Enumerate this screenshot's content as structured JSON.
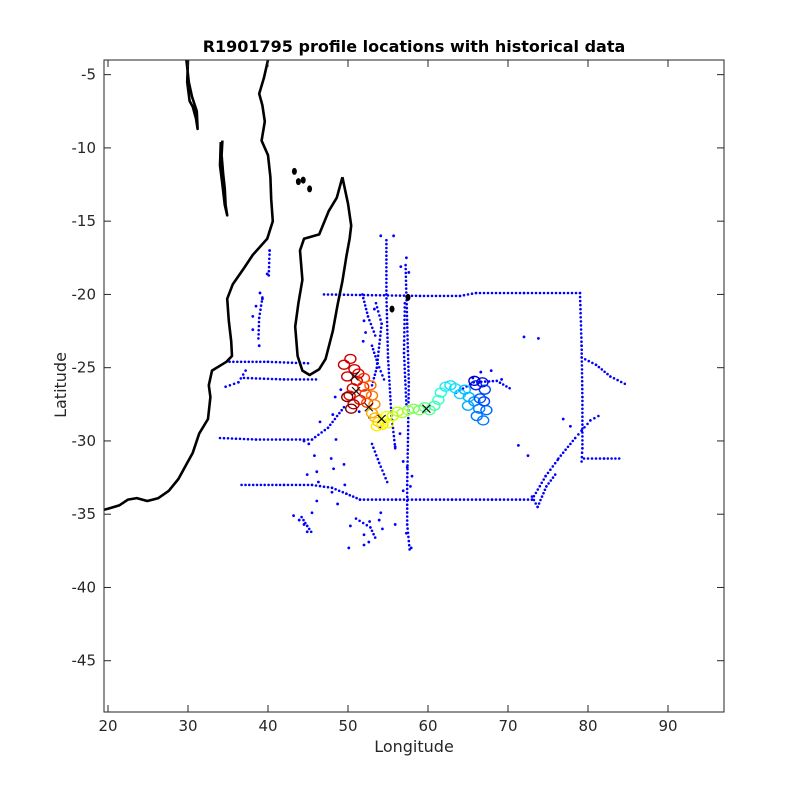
{
  "chart_data": {
    "type": "scatter",
    "title": "R1901795 profile locations with historical data",
    "xlabel": "Longitude",
    "ylabel": "Latitude",
    "xlim": [
      19.5,
      97
    ],
    "ylim": [
      -48.5,
      -4
    ],
    "xticks": [
      20,
      30,
      40,
      50,
      60,
      70,
      80,
      90
    ],
    "yticks": [
      -5,
      -10,
      -15,
      -20,
      -25,
      -30,
      -35,
      -40,
      -45
    ],
    "grid": false,
    "coastline_color": "#000000",
    "historical_color": "#0000ff",
    "coastline": [
      [
        [
          30,
          -4
        ],
        [
          29.9,
          -5.5
        ],
        [
          30.2,
          -6.8
        ],
        [
          30.6,
          -7.2
        ],
        [
          31.0,
          -8.0
        ],
        [
          31.2,
          -8.7
        ],
        [
          31.1,
          -7.5
        ],
        [
          30.5,
          -6.5
        ],
        [
          30.1,
          -5.5
        ],
        [
          29.8,
          -4
        ]
      ],
      [
        [
          34.3,
          -9.5
        ],
        [
          34.2,
          -10.5
        ],
        [
          34.4,
          -11.8
        ],
        [
          34.6,
          -12.8
        ],
        [
          34.7,
          -13.9
        ],
        [
          34.9,
          -14.6
        ],
        [
          34.6,
          -13.9
        ],
        [
          34.3,
          -12.5
        ],
        [
          34.0,
          -11.2
        ],
        [
          34.1,
          -9.6
        ]
      ],
      [
        [
          40.0,
          -4
        ],
        [
          39.5,
          -5.2
        ],
        [
          38.9,
          -6.3
        ],
        [
          39.3,
          -7.1
        ],
        [
          39.6,
          -8.2
        ],
        [
          39.2,
          -9.5
        ],
        [
          40.0,
          -10.5
        ],
        [
          40.3,
          -12.0
        ],
        [
          40.4,
          -13.5
        ],
        [
          40.6,
          -15.0
        ],
        [
          39.9,
          -16.2
        ],
        [
          38.1,
          -17.3
        ],
        [
          37.0,
          -18.2
        ],
        [
          35.6,
          -19.3
        ],
        [
          34.9,
          -20.3
        ],
        [
          35.1,
          -21.8
        ],
        [
          35.4,
          -23.2
        ],
        [
          35.5,
          -24.2
        ],
        [
          34.8,
          -24.6
        ],
        [
          33.0,
          -25.2
        ],
        [
          32.6,
          -26.2
        ],
        [
          32.8,
          -27.0
        ],
        [
          32.5,
          -28.5
        ],
        [
          31.4,
          -29.5
        ],
        [
          30.6,
          -30.8
        ],
        [
          29.8,
          -31.6
        ],
        [
          28.8,
          -32.6
        ],
        [
          27.6,
          -33.4
        ],
        [
          26.3,
          -33.9
        ],
        [
          25.6,
          -34.0
        ],
        [
          24.9,
          -34.1
        ],
        [
          23.6,
          -33.9
        ],
        [
          22.5,
          -34.0
        ],
        [
          21.4,
          -34.4
        ],
        [
          20.2,
          -34.6
        ],
        [
          19.5,
          -34.7
        ]
      ],
      [
        [
          49.3,
          -12.0
        ],
        [
          50.0,
          -13.8
        ],
        [
          50.4,
          -15.3
        ],
        [
          50.2,
          -16.2
        ],
        [
          49.8,
          -17.4
        ],
        [
          49.3,
          -19.1
        ],
        [
          48.7,
          -20.7
        ],
        [
          48.1,
          -22.5
        ],
        [
          47.2,
          -24.4
        ],
        [
          46.4,
          -25.1
        ],
        [
          45.2,
          -25.5
        ],
        [
          44.3,
          -25.2
        ],
        [
          43.7,
          -24.2
        ],
        [
          43.4,
          -22.2
        ],
        [
          43.8,
          -20.6
        ],
        [
          44.3,
          -19.0
        ],
        [
          44.0,
          -17.0
        ],
        [
          44.5,
          -16.2
        ],
        [
          46.4,
          -15.9
        ],
        [
          47.6,
          -14.3
        ],
        [
          48.6,
          -13.4
        ],
        [
          49.3,
          -12.0
        ]
      ]
    ],
    "islands": [
      {
        "lon": 43.3,
        "lat": -11.6
      },
      {
        "lon": 43.8,
        "lat": -12.3
      },
      {
        "lon": 44.4,
        "lat": -12.2
      },
      {
        "lon": 45.2,
        "lat": -12.8
      },
      {
        "lon": 55.5,
        "lat": -21.0
      },
      {
        "lon": 57.5,
        "lat": -20.2
      }
    ],
    "historical_tracks": [
      [
        [
          47,
          -20.0
        ],
        [
          59,
          -20.1
        ],
        [
          64,
          -20.1
        ],
        [
          66,
          -19.9
        ],
        [
          72,
          -19.9
        ],
        [
          79,
          -19.9
        ],
        [
          79.2,
          -23.5
        ],
        [
          79.3,
          -27.0
        ],
        [
          79.3,
          -30.5
        ],
        [
          79.2,
          -31.4
        ]
      ],
      [
        [
          76.3,
          -31.2
        ],
        [
          78.4,
          -29.8
        ],
        [
          79.2,
          -29.3
        ],
        [
          80.3,
          -28.6
        ],
        [
          81.3,
          -28.3
        ]
      ],
      [
        [
          79.2,
          -24.3
        ],
        [
          81.0,
          -24.8
        ],
        [
          82.8,
          -25.6
        ],
        [
          84.6,
          -26.1
        ]
      ],
      [
        [
          79.5,
          -31.2
        ],
        [
          82.0,
          -31.2
        ],
        [
          83.9,
          -31.2
        ]
      ],
      [
        [
          35.2,
          -24.6
        ],
        [
          40.0,
          -24.6
        ],
        [
          45.0,
          -24.7
        ]
      ],
      [
        [
          37.0,
          -25.7
        ],
        [
          42.0,
          -25.8
        ],
        [
          46.0,
          -25.8
        ]
      ],
      [
        [
          34.0,
          -29.8
        ],
        [
          38.5,
          -29.9
        ],
        [
          42.5,
          -29.9
        ],
        [
          45.5,
          -29.9
        ],
        [
          47.5,
          -29.1
        ],
        [
          49.5,
          -27.7
        ]
      ],
      [
        [
          36.7,
          -33.0
        ],
        [
          42.0,
          -33.0
        ],
        [
          45.5,
          -33.0
        ],
        [
          48.0,
          -33.2
        ],
        [
          49.8,
          -33.6
        ],
        [
          51.5,
          -34.0
        ],
        [
          56.0,
          -34.0
        ],
        [
          63.0,
          -34.0
        ],
        [
          68.0,
          -34.0
        ],
        [
          73.0,
          -34.0
        ],
        [
          74.7,
          -32.4
        ],
        [
          76.2,
          -31.3
        ]
      ],
      [
        [
          73.0,
          -33.8
        ],
        [
          73.7,
          -34.5
        ],
        [
          74.8,
          -33.1
        ],
        [
          75.9,
          -32.3
        ]
      ],
      [
        [
          54.8,
          -16.3
        ],
        [
          54.8,
          -20.0
        ],
        [
          55.0,
          -24.3
        ],
        [
          55.4,
          -28.0
        ],
        [
          55.9,
          -30.5
        ]
      ],
      [
        [
          57.2,
          -18.0
        ],
        [
          57.4,
          -22.0
        ],
        [
          57.6,
          -26.0
        ],
        [
          57.5,
          -29.8
        ],
        [
          57.4,
          -33.0
        ],
        [
          57.4,
          -35.7
        ],
        [
          57.7,
          -37.4
        ]
      ],
      [
        [
          57.1,
          -20.6
        ],
        [
          57.0,
          -24.0
        ],
        [
          57.3,
          -27.5
        ]
      ],
      [
        [
          53.5,
          -20.6
        ],
        [
          54.2,
          -22.0
        ],
        [
          53.6,
          -25.0
        ],
        [
          53.0,
          -26.2
        ]
      ],
      [
        [
          51.8,
          -20.0
        ],
        [
          52.5,
          -21.5
        ],
        [
          53.4,
          -22.8
        ]
      ],
      [
        [
          53.0,
          -23.5
        ],
        [
          53.7,
          -24.7
        ],
        [
          54.5,
          -25.8
        ]
      ],
      [
        [
          53.0,
          -30.2
        ],
        [
          53.9,
          -31.5
        ],
        [
          54.9,
          -32.8
        ]
      ],
      [
        [
          51.0,
          -35.3
        ],
        [
          52.8,
          -35.9
        ],
        [
          53.4,
          -36.6
        ]
      ],
      [
        [
          44.2,
          -35.2
        ],
        [
          44.9,
          -35.8
        ],
        [
          45.4,
          -36.2
        ]
      ],
      [
        [
          34.7,
          -26.3
        ],
        [
          36.3,
          -26.0
        ],
        [
          37.2,
          -25.2
        ]
      ],
      [
        [
          38.8,
          -23.0
        ],
        [
          38.9,
          -21.6
        ],
        [
          39.3,
          -20.2
        ]
      ],
      [
        [
          40.2,
          -17.0
        ],
        [
          40.1,
          -18.7
        ]
      ],
      [
        [
          63.5,
          -26.7
        ],
        [
          65.7,
          -26.0
        ],
        [
          68.6,
          -25.9
        ],
        [
          70.2,
          -26.4
        ]
      ]
    ],
    "historical_points": [
      [
        40.2,
        -17.0
      ],
      [
        39.9,
        -18.6
      ],
      [
        39.0,
        -19.9
      ],
      [
        38.5,
        -20.8
      ],
      [
        38.1,
        -22.4
      ],
      [
        38.9,
        -23.5
      ],
      [
        38.1,
        -21.5
      ],
      [
        39.3,
        -20.3
      ],
      [
        44.5,
        -30.0
      ],
      [
        45.1,
        -30.2
      ],
      [
        44.9,
        -32.3
      ],
      [
        45.8,
        -31.0
      ],
      [
        46.1,
        -32.1
      ],
      [
        46.3,
        -32.8
      ],
      [
        46.5,
        -28.7
      ],
      [
        47.9,
        -31.2
      ],
      [
        48.2,
        -31.9
      ],
      [
        48.5,
        -29.9
      ],
      [
        49.5,
        -31.6
      ],
      [
        49.6,
        -33.0
      ],
      [
        48.0,
        -33.5
      ],
      [
        48.7,
        -34.3
      ],
      [
        43.2,
        -35.1
      ],
      [
        43.9,
        -35.4
      ],
      [
        44.5,
        -35.7
      ],
      [
        44.9,
        -36.2
      ],
      [
        45.5,
        -34.9
      ],
      [
        46.1,
        -34.1
      ],
      [
        50.1,
        -37.3
      ],
      [
        50.3,
        -35.8
      ],
      [
        52.0,
        -36.4
      ],
      [
        52.7,
        -35.5
      ],
      [
        52.0,
        -37.1
      ],
      [
        52.6,
        -36.9
      ],
      [
        53.9,
        -35.4
      ],
      [
        54.3,
        -36.0
      ],
      [
        54.1,
        -34.9
      ],
      [
        55.9,
        -35.7
      ],
      [
        57.3,
        -36.3
      ],
      [
        57.9,
        -37.3
      ],
      [
        55.9,
        -30.4
      ],
      [
        56.5,
        -29.5
      ],
      [
        56.9,
        -31.4
      ],
      [
        57.4,
        -31.8
      ],
      [
        58.0,
        -32.4
      ],
      [
        57.8,
        -33.1
      ],
      [
        56.9,
        -33.4
      ],
      [
        51.9,
        -23.2
      ],
      [
        52.0,
        -21.8
      ],
      [
        52.2,
        -22.6
      ],
      [
        53.3,
        -21.0
      ],
      [
        54.1,
        -16.0
      ],
      [
        55.7,
        -16.0
      ],
      [
        56.6,
        -18.1
      ],
      [
        57.3,
        -17.5
      ],
      [
        57.6,
        -18.5
      ],
      [
        65.6,
        -25.7
      ],
      [
        66.6,
        -25.3
      ],
      [
        67.9,
        -25.2
      ],
      [
        69.2,
        -25.8
      ],
      [
        71.3,
        -30.3
      ],
      [
        72.5,
        -31.0
      ],
      [
        72.0,
        -22.9
      ],
      [
        73.8,
        -23.0
      ],
      [
        76.9,
        -28.5
      ],
      [
        77.8,
        -29.0
      ],
      [
        48.1,
        -28.2
      ],
      [
        48.4,
        -27.0
      ],
      [
        49.1,
        -26.5
      ],
      [
        52.7,
        -28.4
      ],
      [
        51.4,
        -28.0
      ],
      [
        54.0,
        -29.1
      ]
    ],
    "float_track": [
      {
        "lon": 50.3,
        "lat": -24.4,
        "color": "#cc0000"
      },
      {
        "lon": 49.5,
        "lat": -24.8,
        "color": "#cc0000"
      },
      {
        "lon": 50.8,
        "lat": -25.1,
        "color": "#cc0000"
      },
      {
        "lon": 49.9,
        "lat": -25.6,
        "color": "#cc0000"
      },
      {
        "lon": 51.1,
        "lat": -25.9,
        "color": "#cc0000"
      },
      {
        "lon": 50.6,
        "lat": -26.4,
        "color": "#cc0000"
      },
      {
        "lon": 51.3,
        "lat": -25.4,
        "color": "#dd0000"
      },
      {
        "lon": 50.2,
        "lat": -26.9,
        "color": "#dd1100"
      },
      {
        "lon": 51.5,
        "lat": -27.2,
        "color": "#dd1100"
      },
      {
        "lon": 50.7,
        "lat": -27.5,
        "color": "#aa0000"
      },
      {
        "lon": 49.9,
        "lat": -27.0,
        "color": "#880000"
      },
      {
        "lon": 50.4,
        "lat": -27.8,
        "color": "#880000"
      },
      {
        "lon": 51.9,
        "lat": -26.3,
        "color": "#ee2200"
      },
      {
        "lon": 52.2,
        "lat": -26.8,
        "color": "#ff3300"
      },
      {
        "lon": 52.4,
        "lat": -27.4,
        "color": "#ff4400"
      },
      {
        "lon": 52.0,
        "lat": -25.7,
        "color": "#ff3300"
      },
      {
        "lon": 52.8,
        "lat": -26.2,
        "color": "#ff6600"
      },
      {
        "lon": 53.0,
        "lat": -26.9,
        "color": "#ff7700"
      },
      {
        "lon": 53.3,
        "lat": -27.5,
        "color": "#ff8800"
      },
      {
        "lon": 53.0,
        "lat": -28.1,
        "color": "#ffaa00"
      },
      {
        "lon": 53.4,
        "lat": -28.4,
        "color": "#ffbb00"
      },
      {
        "lon": 53.8,
        "lat": -28.7,
        "color": "#ffcc00"
      },
      {
        "lon": 54.3,
        "lat": -28.9,
        "color": "#ffdd00"
      },
      {
        "lon": 53.6,
        "lat": -29.0,
        "color": "#ffee00"
      },
      {
        "lon": 54.8,
        "lat": -28.3,
        "color": "#eeff00"
      },
      {
        "lon": 54.5,
        "lat": -28.6,
        "color": "#ffff00"
      },
      {
        "lon": 55.0,
        "lat": -28.8,
        "color": "#eeff00"
      },
      {
        "lon": 55.6,
        "lat": -28.3,
        "color": "#ccff00"
      },
      {
        "lon": 56.2,
        "lat": -28.0,
        "color": "#bbff22"
      },
      {
        "lon": 56.8,
        "lat": -28.1,
        "color": "#aaff33"
      },
      {
        "lon": 57.5,
        "lat": -27.9,
        "color": "#99ff44"
      },
      {
        "lon": 58.2,
        "lat": -27.8,
        "color": "#88ff55"
      },
      {
        "lon": 58.9,
        "lat": -27.9,
        "color": "#77ff66"
      },
      {
        "lon": 59.6,
        "lat": -27.7,
        "color": "#66ff88"
      },
      {
        "lon": 60.2,
        "lat": -27.9,
        "color": "#55ff99"
      },
      {
        "lon": 60.8,
        "lat": -27.6,
        "color": "#44ffaa"
      },
      {
        "lon": 61.3,
        "lat": -27.2,
        "color": "#33ffcc"
      },
      {
        "lon": 61.6,
        "lat": -26.7,
        "color": "#22ffdd"
      },
      {
        "lon": 62.2,
        "lat": -26.3,
        "color": "#22eeee"
      },
      {
        "lon": 62.8,
        "lat": -26.2,
        "color": "#11ddff"
      },
      {
        "lon": 63.4,
        "lat": -26.4,
        "color": "#11ddff"
      },
      {
        "lon": 64.0,
        "lat": -26.8,
        "color": "#11ccff"
      },
      {
        "lon": 64.6,
        "lat": -26.5,
        "color": "#00bbff"
      },
      {
        "lon": 65.1,
        "lat": -27.0,
        "color": "#00bbff"
      },
      {
        "lon": 65.0,
        "lat": -27.6,
        "color": "#00aaff"
      },
      {
        "lon": 65.8,
        "lat": -27.3,
        "color": "#0099ff"
      },
      {
        "lon": 66.4,
        "lat": -27.8,
        "color": "#0088ff"
      },
      {
        "lon": 66.1,
        "lat": -28.3,
        "color": "#0077ff"
      },
      {
        "lon": 66.9,
        "lat": -28.6,
        "color": "#0077ff"
      },
      {
        "lon": 67.3,
        "lat": -27.9,
        "color": "#0066ff"
      },
      {
        "lon": 66.5,
        "lat": -27.1,
        "color": "#0055ff"
      },
      {
        "lon": 67.1,
        "lat": -26.5,
        "color": "#0044ff"
      },
      {
        "lon": 66.0,
        "lat": -26.2,
        "color": "#0022ee"
      },
      {
        "lon": 66.8,
        "lat": -26.0,
        "color": "#0011dd"
      },
      {
        "lon": 65.8,
        "lat": -25.9,
        "color": "#0000cc"
      },
      {
        "lon": 67.0,
        "lat": -27.3,
        "color": "#0044ff"
      }
    ],
    "float_x_markers": [
      {
        "lon": 50.8,
        "lat": -25.6
      },
      {
        "lon": 51.0,
        "lat": -26.6
      },
      {
        "lon": 52.6,
        "lat": -27.7
      },
      {
        "lon": 54.2,
        "lat": -28.5
      },
      {
        "lon": 59.8,
        "lat": -27.8
      }
    ]
  }
}
